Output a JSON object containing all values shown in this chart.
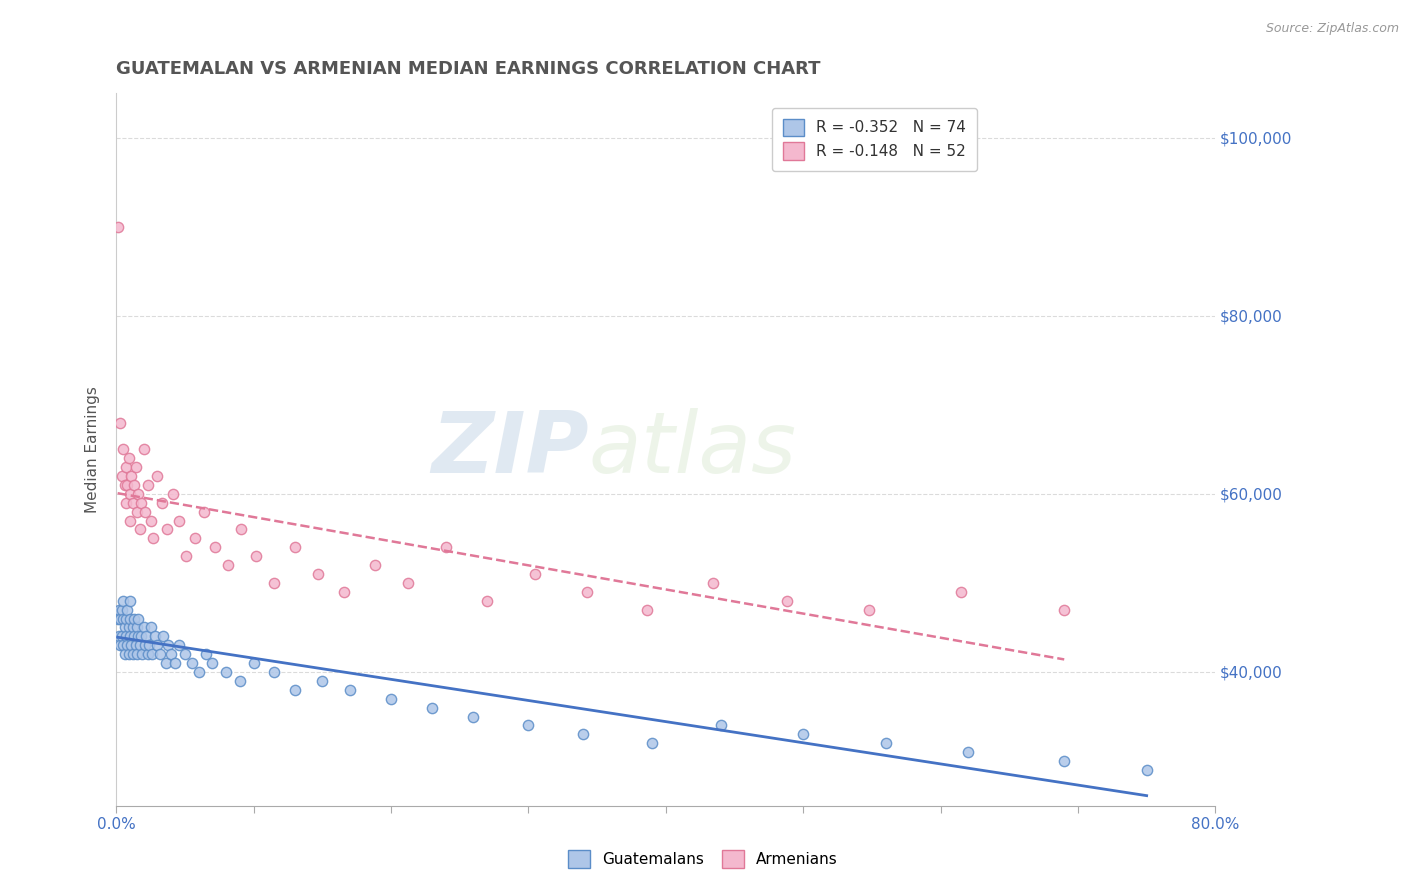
{
  "title": "GUATEMALAN VS ARMENIAN MEDIAN EARNINGS CORRELATION CHART",
  "source_text": "Source: ZipAtlas.com",
  "ylabel": "Median Earnings",
  "xlim": [
    0.0,
    0.8
  ],
  "ylim": [
    25000,
    105000
  ],
  "x_ticks": [
    0.0,
    0.1,
    0.2,
    0.3,
    0.4,
    0.5,
    0.6,
    0.7,
    0.8
  ],
  "y_tick_labels_right": [
    "$40,000",
    "$60,000",
    "$80,000",
    "$100,000"
  ],
  "y_tick_vals_right": [
    40000,
    60000,
    80000,
    100000
  ],
  "guatemalan_color": "#aec6e8",
  "guatemalan_edge_color": "#5b8dc8",
  "armenian_color": "#f4b8ce",
  "armenian_edge_color": "#e07898",
  "guatemalan_line_color": "#4472c4",
  "armenian_line_color": "#e07898",
  "background_color": "#ffffff",
  "grid_color": "#cccccc",
  "R_guatemalan": -0.352,
  "N_guatemalan": 74,
  "R_armenian": -0.148,
  "N_armenian": 52,
  "legend_label_guatemalan": "Guatemalans",
  "legend_label_armenian": "Armenians",
  "watermark_zip": "ZIP",
  "watermark_atlas": "atlas",
  "title_color": "#555555",
  "axis_label_color": "#555555",
  "right_axis_color": "#4472c4",
  "guatemalan_x": [
    0.001,
    0.002,
    0.002,
    0.003,
    0.003,
    0.004,
    0.004,
    0.005,
    0.005,
    0.005,
    0.006,
    0.006,
    0.007,
    0.007,
    0.008,
    0.008,
    0.009,
    0.009,
    0.01,
    0.01,
    0.01,
    0.011,
    0.012,
    0.012,
    0.013,
    0.013,
    0.014,
    0.015,
    0.015,
    0.016,
    0.016,
    0.017,
    0.018,
    0.019,
    0.02,
    0.021,
    0.022,
    0.023,
    0.024,
    0.025,
    0.026,
    0.028,
    0.03,
    0.032,
    0.034,
    0.036,
    0.038,
    0.04,
    0.043,
    0.046,
    0.05,
    0.055,
    0.06,
    0.065,
    0.07,
    0.08,
    0.09,
    0.1,
    0.115,
    0.13,
    0.15,
    0.17,
    0.2,
    0.23,
    0.26,
    0.3,
    0.34,
    0.39,
    0.44,
    0.5,
    0.56,
    0.62,
    0.69,
    0.75
  ],
  "guatemalan_y": [
    46000,
    47000,
    44000,
    46000,
    43000,
    47000,
    44000,
    46000,
    48000,
    43000,
    45000,
    42000,
    46000,
    44000,
    47000,
    43000,
    45000,
    42000,
    46000,
    44000,
    48000,
    43000,
    45000,
    42000,
    46000,
    44000,
    43000,
    45000,
    42000,
    44000,
    46000,
    43000,
    44000,
    42000,
    45000,
    43000,
    44000,
    42000,
    43000,
    45000,
    42000,
    44000,
    43000,
    42000,
    44000,
    41000,
    43000,
    42000,
    41000,
    43000,
    42000,
    41000,
    40000,
    42000,
    41000,
    40000,
    39000,
    41000,
    40000,
    38000,
    39000,
    38000,
    37000,
    36000,
    35000,
    34000,
    33000,
    32000,
    34000,
    33000,
    32000,
    31000,
    30000,
    29000
  ],
  "armenian_x": [
    0.001,
    0.003,
    0.004,
    0.005,
    0.006,
    0.007,
    0.007,
    0.008,
    0.009,
    0.01,
    0.01,
    0.011,
    0.012,
    0.013,
    0.014,
    0.015,
    0.016,
    0.017,
    0.018,
    0.02,
    0.021,
    0.023,
    0.025,
    0.027,
    0.03,
    0.033,
    0.037,
    0.041,
    0.046,
    0.051,
    0.057,
    0.064,
    0.072,
    0.081,
    0.091,
    0.102,
    0.115,
    0.13,
    0.147,
    0.166,
    0.188,
    0.212,
    0.24,
    0.27,
    0.305,
    0.343,
    0.386,
    0.434,
    0.488,
    0.548,
    0.615,
    0.69
  ],
  "armenian_y": [
    90000,
    68000,
    62000,
    65000,
    61000,
    63000,
    59000,
    61000,
    64000,
    60000,
    57000,
    62000,
    59000,
    61000,
    63000,
    58000,
    60000,
    56000,
    59000,
    65000,
    58000,
    61000,
    57000,
    55000,
    62000,
    59000,
    56000,
    60000,
    57000,
    53000,
    55000,
    58000,
    54000,
    52000,
    56000,
    53000,
    50000,
    54000,
    51000,
    49000,
    52000,
    50000,
    54000,
    48000,
    51000,
    49000,
    47000,
    50000,
    48000,
    47000,
    49000,
    47000
  ]
}
